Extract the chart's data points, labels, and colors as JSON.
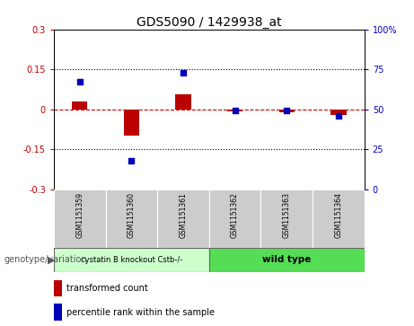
{
  "title": "GDS5090 / 1429938_at",
  "samples": [
    "GSM1151359",
    "GSM1151360",
    "GSM1151361",
    "GSM1151362",
    "GSM1151363",
    "GSM1151364"
  ],
  "transformed_count": [
    0.03,
    -0.1,
    0.055,
    -0.008,
    -0.01,
    -0.022
  ],
  "percentile_rank": [
    67,
    18,
    73,
    49,
    49,
    46
  ],
  "ylim_left": [
    -0.3,
    0.3
  ],
  "ylim_right": [
    0,
    100
  ],
  "yticks_left": [
    -0.3,
    -0.15,
    0,
    0.15,
    0.3
  ],
  "yticks_right": [
    0,
    25,
    50,
    75,
    100
  ],
  "bar_color": "#bb0000",
  "dot_color": "#0000bb",
  "zero_line_color": "#cc0000",
  "group1_label": "cystatin B knockout Cstb-/-",
  "group2_label": "wild type",
  "group1_color": "#ccffcc",
  "group2_color": "#55dd55",
  "group1_indices": [
    0,
    1,
    2
  ],
  "group2_indices": [
    3,
    4,
    5
  ],
  "genotype_label": "genotype/variation",
  "legend_red": "transformed count",
  "legend_blue": "percentile rank within the sample",
  "title_fontsize": 10,
  "tick_fontsize": 7,
  "sample_fontsize": 5.5,
  "legend_fontsize": 7,
  "genotype_fontsize": 7
}
